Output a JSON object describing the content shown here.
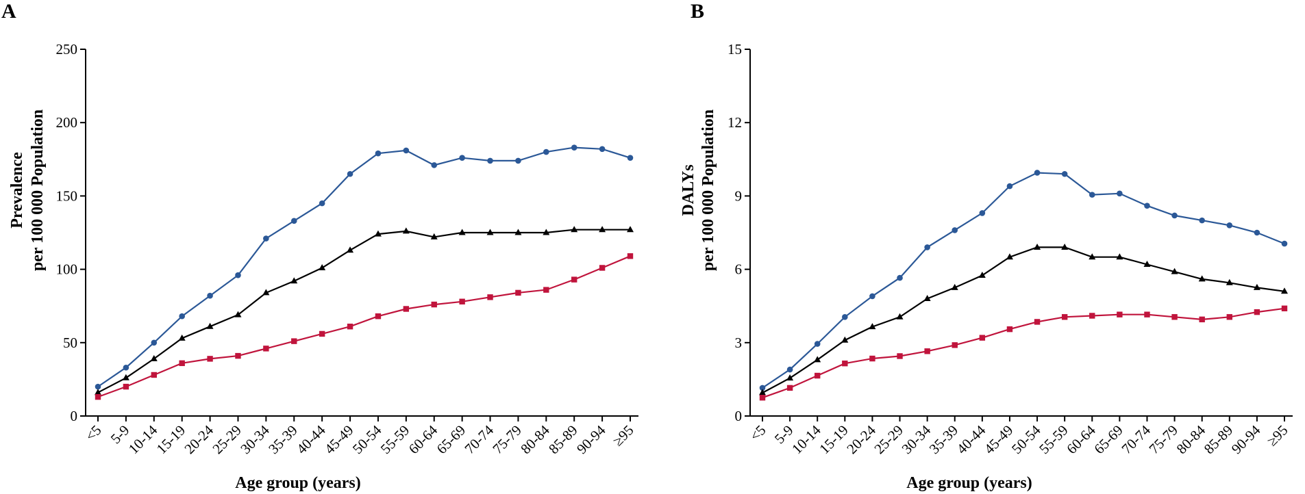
{
  "colors": {
    "blue": "#2b5897",
    "black": "#000000",
    "red": "#c0143c"
  },
  "chart_data": [
    {
      "panel": "A",
      "type": "line",
      "xlabel": "Age group (years)",
      "ylabel_line1": "Prevalence",
      "ylabel_line2": "per 100 000 Population",
      "ylim": [
        0,
        250
      ],
      "yticks": [
        "0",
        "50",
        "100",
        "150",
        "200",
        "250"
      ],
      "categories": [
        "<5",
        "5-9",
        "10-14",
        "15-19",
        "20-24",
        "25-29",
        "30-34",
        "35-39",
        "40-44",
        "45-49",
        "50-54",
        "55-59",
        "60-64",
        "65-69",
        "70-74",
        "75-79",
        "80-84",
        "85-89",
        "90-94",
        "≥95"
      ],
      "series": [
        {
          "color_key": "blue",
          "marker": "circle",
          "values": [
            20,
            33,
            50,
            68,
            82,
            96,
            121,
            133,
            145,
            165,
            179,
            181,
            171,
            176,
            174,
            174,
            180,
            183,
            182,
            176
          ]
        },
        {
          "color_key": "black",
          "marker": "triangle",
          "values": [
            16,
            26,
            39,
            53,
            61,
            69,
            84,
            92,
            101,
            113,
            124,
            126,
            122,
            125,
            125,
            125,
            125,
            127,
            127,
            127
          ]
        },
        {
          "color_key": "red",
          "marker": "square",
          "values": [
            13,
            20,
            28,
            36,
            39,
            41,
            46,
            51,
            56,
            61,
            68,
            73,
            76,
            78,
            81,
            84,
            86,
            93,
            101,
            109
          ]
        }
      ]
    },
    {
      "panel": "B",
      "type": "line",
      "xlabel": "Age group (years)",
      "ylabel_line1": "DALYs",
      "ylabel_line2": "per 100 000 Population",
      "ylim": [
        0,
        15
      ],
      "yticks": [
        "0",
        "3",
        "6",
        "9",
        "12",
        "15"
      ],
      "categories": [
        "<5",
        "5-9",
        "10-14",
        "15-19",
        "20-24",
        "25-29",
        "30-34",
        "35-39",
        "40-44",
        "45-49",
        "50-54",
        "55-59",
        "60-64",
        "65-69",
        "70-74",
        "75-79",
        "80-84",
        "85-89",
        "90-94",
        "≥95"
      ],
      "series": [
        {
          "color_key": "blue",
          "marker": "circle",
          "values": [
            1.15,
            1.9,
            2.95,
            4.05,
            4.9,
            5.65,
            6.9,
            7.6,
            8.3,
            9.4,
            9.95,
            9.9,
            9.05,
            9.1,
            8.6,
            8.2,
            8.0,
            7.8,
            7.5,
            7.05
          ]
        },
        {
          "color_key": "black",
          "marker": "triangle",
          "values": [
            0.95,
            1.55,
            2.3,
            3.1,
            3.65,
            4.05,
            4.8,
            5.25,
            5.75,
            6.5,
            6.9,
            6.9,
            6.5,
            6.5,
            6.2,
            5.9,
            5.6,
            5.45,
            5.25,
            5.1
          ]
        },
        {
          "color_key": "red",
          "marker": "square",
          "values": [
            0.75,
            1.15,
            1.65,
            2.15,
            2.35,
            2.45,
            2.65,
            2.9,
            3.2,
            3.55,
            3.85,
            4.05,
            4.1,
            4.15,
            4.15,
            4.05,
            3.95,
            4.05,
            4.25,
            4.4
          ]
        }
      ]
    }
  ]
}
